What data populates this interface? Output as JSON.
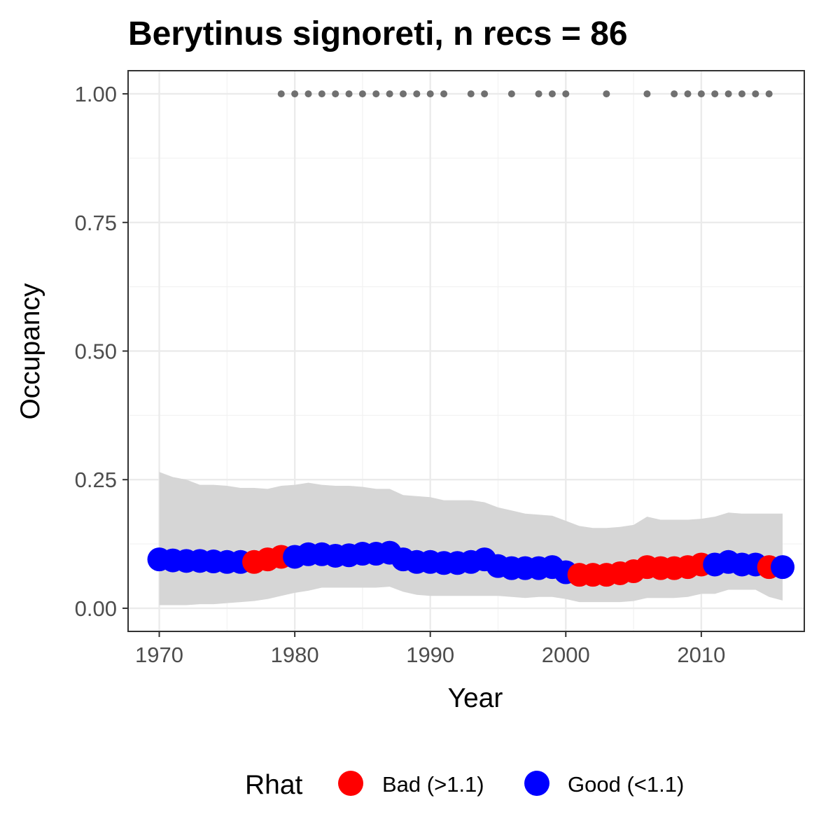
{
  "chart_data": {
    "type": "line",
    "title": "Berytinus signoreti, n recs = 86",
    "xlabel": "Year",
    "ylabel": "Occupancy",
    "xlim": [
      1967.7,
      2017.6
    ],
    "ylim": [
      -0.045,
      1.045
    ],
    "x_ticks": [
      1970,
      1980,
      1990,
      2000,
      2010
    ],
    "x_tick_labels": [
      "1970",
      "1980",
      "1990",
      "2000",
      "2010"
    ],
    "y_ticks": [
      0,
      0.25,
      0.5,
      0.75,
      1.0
    ],
    "y_tick_labels": [
      "0.00",
      "0.25",
      "0.50",
      "0.75",
      "1.00"
    ],
    "grid": true,
    "years": [
      1970,
      1971,
      1972,
      1973,
      1974,
      1975,
      1976,
      1977,
      1978,
      1979,
      1980,
      1981,
      1982,
      1983,
      1984,
      1985,
      1986,
      1987,
      1988,
      1989,
      1990,
      1991,
      1992,
      1993,
      1994,
      1995,
      1996,
      1997,
      1998,
      1999,
      2000,
      2001,
      2002,
      2003,
      2004,
      2005,
      2006,
      2007,
      2008,
      2009,
      2010,
      2011,
      2012,
      2013,
      2014,
      2015,
      2016
    ],
    "occupancy": [
      0.095,
      0.093,
      0.092,
      0.092,
      0.091,
      0.09,
      0.09,
      0.09,
      0.095,
      0.1,
      0.1,
      0.105,
      0.105,
      0.102,
      0.103,
      0.106,
      0.106,
      0.108,
      0.095,
      0.09,
      0.09,
      0.088,
      0.088,
      0.09,
      0.095,
      0.082,
      0.078,
      0.078,
      0.078,
      0.08,
      0.07,
      0.065,
      0.065,
      0.065,
      0.068,
      0.072,
      0.08,
      0.078,
      0.078,
      0.08,
      0.085,
      0.085,
      0.09,
      0.085,
      0.085,
      0.08,
      0.08
    ],
    "rhat_class": [
      "good",
      "good",
      "good",
      "good",
      "good",
      "good",
      "good",
      "bad",
      "bad",
      "bad",
      "good",
      "good",
      "good",
      "good",
      "good",
      "good",
      "good",
      "good",
      "good",
      "good",
      "good",
      "good",
      "good",
      "good",
      "good",
      "good",
      "good",
      "good",
      "good",
      "good",
      "good",
      "bad",
      "bad",
      "bad",
      "bad",
      "bad",
      "bad",
      "bad",
      "bad",
      "bad",
      "bad",
      "good",
      "good",
      "good",
      "good",
      "bad",
      "good"
    ],
    "ci_upper": [
      0.265,
      0.255,
      0.25,
      0.24,
      0.24,
      0.238,
      0.234,
      0.234,
      0.232,
      0.238,
      0.24,
      0.244,
      0.24,
      0.238,
      0.238,
      0.236,
      0.232,
      0.232,
      0.22,
      0.218,
      0.216,
      0.21,
      0.21,
      0.21,
      0.206,
      0.196,
      0.19,
      0.184,
      0.182,
      0.18,
      0.17,
      0.16,
      0.156,
      0.156,
      0.158,
      0.162,
      0.178,
      0.172,
      0.172,
      0.172,
      0.174,
      0.178,
      0.186,
      0.184,
      0.184,
      0.184,
      0.184
    ],
    "ci_lower": [
      0.006,
      0.006,
      0.006,
      0.008,
      0.008,
      0.01,
      0.012,
      0.014,
      0.018,
      0.024,
      0.03,
      0.034,
      0.04,
      0.04,
      0.04,
      0.04,
      0.04,
      0.042,
      0.032,
      0.026,
      0.024,
      0.024,
      0.024,
      0.024,
      0.024,
      0.024,
      0.022,
      0.02,
      0.022,
      0.022,
      0.018,
      0.012,
      0.012,
      0.012,
      0.012,
      0.014,
      0.02,
      0.02,
      0.02,
      0.022,
      0.028,
      0.028,
      0.036,
      0.036,
      0.036,
      0.022,
      0.015
    ],
    "record_years": [
      1979,
      1980,
      1981,
      1982,
      1983,
      1984,
      1985,
      1986,
      1987,
      1988,
      1989,
      1990,
      1991,
      1993,
      1994,
      1996,
      1998,
      1999,
      2000,
      2003,
      2006,
      2008,
      2009,
      2010,
      2011,
      2012,
      2013,
      2014,
      2015
    ],
    "record_value": 1.0,
    "legend": {
      "title": "Rhat",
      "position": "bottom",
      "entries": [
        {
          "key": "bad",
          "label": "Bad (>1.1)",
          "color": "#ff0000"
        },
        {
          "key": "good",
          "label": "Good (<1.1)",
          "color": "#0000ff"
        }
      ]
    },
    "colors": {
      "bad": "#ff0000",
      "good": "#0000ff",
      "ribbon": "#d6d6d6",
      "records": "#707070"
    }
  }
}
